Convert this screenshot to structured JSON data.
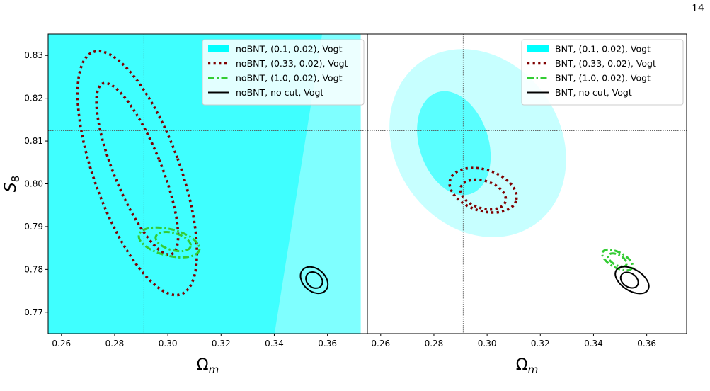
{
  "page_number": "14",
  "chart_data": [
    {
      "type": "contour",
      "panel": "left",
      "xlabel": "Ω_m",
      "ylabel": "S_8",
      "xlim": [
        0.255,
        0.375
      ],
      "ylim": [
        0.765,
        0.835
      ],
      "xticks": [
        "0.26",
        "0.28",
        "0.30",
        "0.32",
        "0.34",
        "0.36"
      ],
      "yticks": [
        "0.77",
        "0.78",
        "0.79",
        "0.80",
        "0.81",
        "0.82",
        "0.83"
      ],
      "fiducial": {
        "Omega_m": 0.291,
        "S8": 0.8124
      },
      "legend_position": "upper right",
      "series": [
        {
          "name": "noBNT, (0.1, 0.02), Vogt",
          "style": "filled",
          "color": "#00ffff",
          "region_68_boundary": [
            [
              0.255,
              0.765
            ],
            [
              0.3725,
              0.765
            ],
            [
              0.3725,
              0.835
            ],
            [
              0.255,
              0.835
            ]
          ],
          "region_95_boundary": [
            [
              0.3401,
              0.765
            ],
            [
              0.375,
              0.765
            ],
            [
              0.375,
              0.835
            ],
            [
              0.358,
              0.835
            ]
          ]
        },
        {
          "name": "noBNT, (0.33, 0.02), Vogt",
          "style": "dotted",
          "color": "#800000",
          "ellipses": [
            {
              "center": [
                0.2885,
                0.8035
              ],
              "semi_axes": [
                0.0089,
                0.0215
              ],
              "angle_deg": -22
            },
            {
              "center": [
                0.2885,
                0.8025
              ],
              "semi_axes": [
                0.0161,
                0.0301
              ],
              "angle_deg": -20
            }
          ]
        },
        {
          "name": "noBNT, (1.0, 0.02), Vogt",
          "style": "dashdot",
          "color": "#33cc33",
          "ellipses": [
            {
              "center": [
                0.302,
                0.7865
              ],
              "semi_axes": [
                0.0068,
                0.002
              ],
              "angle_deg": 16
            },
            {
              "center": [
                0.3005,
                0.7863
              ],
              "semi_axes": [
                0.0117,
                0.0031
              ],
              "angle_deg": 14
            }
          ]
        },
        {
          "name": "noBNT, no cut, Vogt",
          "style": "solid",
          "color": "#000000",
          "ellipses": [
            {
              "center": [
                0.355,
                0.7775
              ],
              "semi_axes": [
                0.0034,
                0.0017
              ],
              "angle_deg": 42
            },
            {
              "center": [
                0.355,
                0.7775
              ],
              "semi_axes": [
                0.0058,
                0.0026
              ],
              "angle_deg": 42
            }
          ]
        }
      ]
    },
    {
      "type": "contour",
      "panel": "right",
      "xlabel": "Ω_m",
      "ylabel": "",
      "xlim": [
        0.255,
        0.375
      ],
      "ylim": [
        0.765,
        0.835
      ],
      "xticks": [
        "0.26",
        "0.28",
        "0.30",
        "0.32",
        "0.34",
        "0.36"
      ],
      "yticks": [],
      "fiducial": {
        "Omega_m": 0.291,
        "S8": 0.8124
      },
      "legend_position": "upper right",
      "series": [
        {
          "name": "BNT, (0.1, 0.02), Vogt",
          "style": "filled",
          "color": "#00ffff",
          "ellipses": [
            {
              "center": [
                0.2875,
                0.8095
              ],
              "semi_axes": [
                0.013,
                0.0125
              ],
              "angle_deg": -18
            },
            {
              "center": [
                0.2965,
                0.8095
              ],
              "semi_axes": [
                0.031,
                0.0232
              ],
              "angle_deg": -35
            }
          ]
        },
        {
          "name": "BNT, (0.33, 0.02), Vogt",
          "style": "dotted",
          "color": "#800000",
          "ellipses": [
            {
              "center": [
                0.2985,
                0.7975
              ],
              "semi_axes": [
                0.0088,
                0.0032
              ],
              "angle_deg": 18
            },
            {
              "center": [
                0.2985,
                0.7985
              ],
              "semi_axes": [
                0.013,
                0.0048
              ],
              "angle_deg": 18
            }
          ]
        },
        {
          "name": "BNT, (1.0, 0.02), Vogt",
          "style": "dashdot",
          "color": "#33cc33",
          "ellipses": [
            {
              "center": [
                0.349,
                0.7822
              ],
              "semi_axes": [
                0.0038,
                0.0012
              ],
              "angle_deg": 28
            },
            {
              "center": [
                0.349,
                0.7822
              ],
              "semi_axes": [
                0.0063,
                0.0018
              ],
              "angle_deg": 28
            }
          ]
        },
        {
          "name": "BNT, no cut, Vogt",
          "style": "solid",
          "color": "#000000",
          "ellipses": [
            {
              "center": [
                0.3535,
                0.7775
              ],
              "semi_axes": [
                0.0036,
                0.0016
              ],
              "angle_deg": 34
            },
            {
              "center": [
                0.3545,
                0.7775
              ],
              "semi_axes": [
                0.007,
                0.0025
              ],
              "angle_deg": 32
            }
          ]
        }
      ]
    }
  ]
}
